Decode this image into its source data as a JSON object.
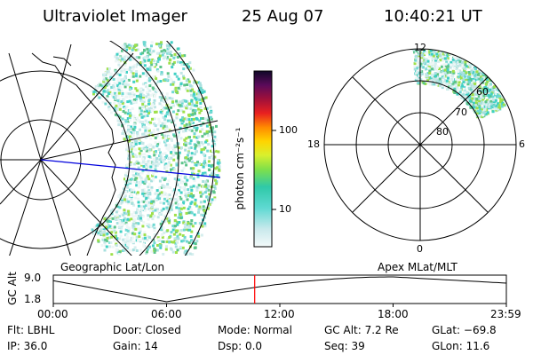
{
  "header": {
    "instrument": "Ultraviolet Imager",
    "date": "25 Aug 07",
    "time": "10:40:21 UT"
  },
  "left_map": {
    "caption": "Geographic Lat/Lon"
  },
  "colorbar": {
    "unit": "photon cm⁻²s⁻¹",
    "ticks": [
      "100",
      "10"
    ],
    "scale": "log"
  },
  "right_map": {
    "caption": "Apex MLat/MLT",
    "mlt_labels": [
      "12",
      "18",
      "6",
      "0"
    ],
    "mlat_labels": [
      "60",
      "70",
      "80"
    ]
  },
  "timeline": {
    "axis_label": "GC Alt",
    "y_ticks": [
      "9.0",
      "1.8"
    ],
    "x_ticks": [
      "00:00",
      "06:00",
      "12:00",
      "18:00",
      "23:59"
    ],
    "current_time_hours": 10.67,
    "marker_color": "#ff0000"
  },
  "footer": {
    "filter": "Flt:  LBHL",
    "ip": "IP:  36.0",
    "door": "Door:  Closed",
    "gain": "Gain:  14",
    "mode": "Mode:  Normal",
    "dsp": "Dsp:      0.0",
    "gc_alt": "GC Alt:  7.2 Re",
    "seq": "Seq:  39",
    "glat": "GLat:  −69.8",
    "glon": "GLon:    11.6"
  }
}
